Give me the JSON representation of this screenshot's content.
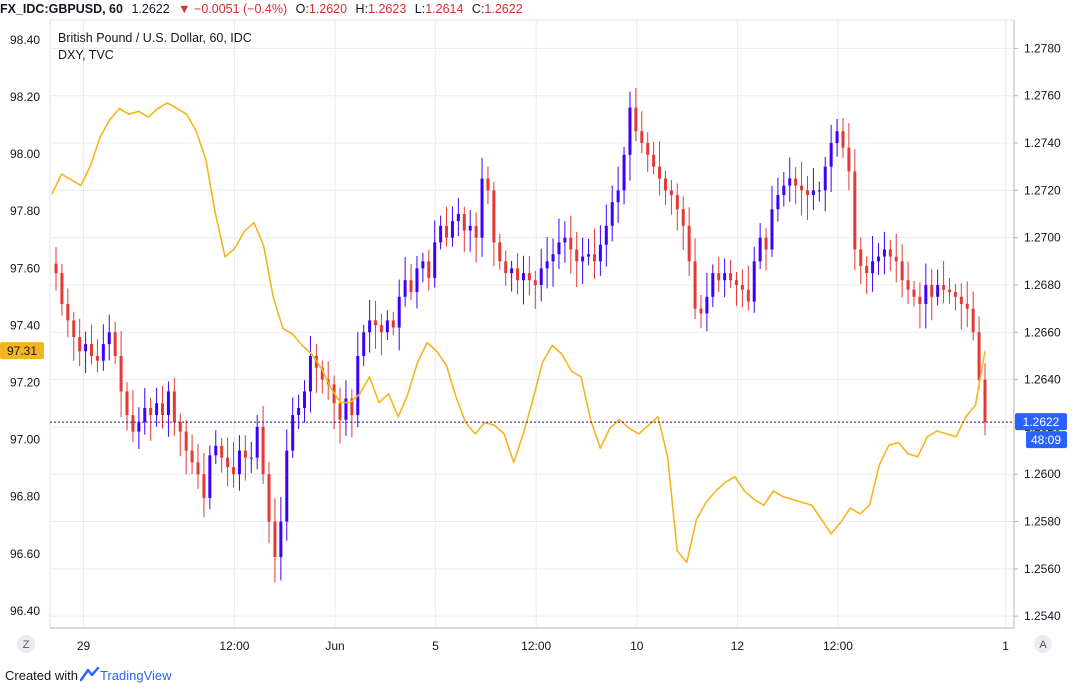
{
  "header": {
    "symbol": "FX_IDC:GBPUSD, 60",
    "last": "1.2622",
    "change": "−0.0051 (−0.4%)",
    "o_label": "O:",
    "o": "1.2620",
    "h_label": "H:",
    "h": "1.2623",
    "l_label": "L:",
    "l": "1.2614",
    "c_label": "C:",
    "c": "1.2622"
  },
  "legend": {
    "main": "British Pound / U.S. Dollar, 60, IDC",
    "overlay": "DXY, TVC"
  },
  "footer": {
    "created_with": "Created with",
    "brand": "TradingView"
  },
  "colors": {
    "up": "#3d00ff",
    "down": "#e53935",
    "dxy": "#f5b51e",
    "grid": "#e9ecf1",
    "price_tag": "#2962ff",
    "dxy_tag": "#f5b51e"
  },
  "chart_data": {
    "type": "line",
    "title": "British Pound / U.S. Dollar, 60, IDC",
    "x_ticks": [
      "29",
      "12:00",
      "Jun",
      "5",
      "12:00",
      "10",
      "12",
      "12:00",
      "1"
    ],
    "y_left_ticks": [
      "98.40",
      "98.20",
      "98.00",
      "97.80",
      "97.60",
      "97.40",
      "97.20",
      "97.00",
      "96.80",
      "96.60",
      "96.40"
    ],
    "y_right_ticks": [
      "1.2780",
      "1.2760",
      "1.2740",
      "1.2720",
      "1.2700",
      "1.2680",
      "1.2660",
      "1.2640",
      "1.2620",
      "1.2600",
      "1.2580",
      "1.2560",
      "1.2540"
    ],
    "ylim_left": [
      96.34,
      98.47
    ],
    "ylim_right": [
      1.2535,
      1.2792
    ],
    "current_price_label": "1.2622",
    "countdown_label": "48:09",
    "dxy_last_label": "97.31",
    "series": [
      {
        "name": "FX_IDC:GBPUSD",
        "kind": "hourly closes",
        "axis": "right",
        "values": [
          1.2685,
          1.2672,
          1.2665,
          1.2658,
          1.2652,
          1.2655,
          1.265,
          1.2648,
          1.2655,
          1.266,
          1.265,
          1.2635,
          1.2625,
          1.2618,
          1.2622,
          1.2628,
          1.2625,
          1.263,
          1.2625,
          1.2635,
          1.2622,
          1.2618,
          1.261,
          1.2605,
          1.26,
          1.259,
          1.2608,
          1.2612,
          1.2607,
          1.2603,
          1.26,
          1.261,
          1.2607,
          1.2607,
          1.262,
          1.26,
          1.258,
          1.2565,
          1.258,
          1.261,
          1.2625,
          1.2628,
          1.2635,
          1.265,
          1.2645,
          1.264,
          1.2638,
          1.263,
          1.2623,
          1.2632,
          1.2625,
          1.265,
          1.266,
          1.2665,
          1.2663,
          1.266,
          1.2665,
          1.2662,
          1.2675,
          1.2682,
          1.2677,
          1.2687,
          1.269,
          1.2683,
          1.2698,
          1.2705,
          1.27,
          1.2707,
          1.271,
          1.2703,
          1.2705,
          1.27,
          1.2725,
          1.272,
          1.2698,
          1.269,
          1.2685,
          1.2687,
          1.2682,
          1.2685,
          1.2682,
          1.268,
          1.2687,
          1.269,
          1.2693,
          1.2698,
          1.27,
          1.2695,
          1.269,
          1.2692,
          1.2693,
          1.269,
          1.2697,
          1.2705,
          1.2715,
          1.272,
          1.2735,
          1.2755,
          1.2745,
          1.274,
          1.2735,
          1.273,
          1.2725,
          1.272,
          1.2718,
          1.2712,
          1.2705,
          1.269,
          1.267,
          1.2668,
          1.2675,
          1.2685,
          1.2682,
          1.2685,
          1.2682,
          1.268,
          1.2678,
          1.2673,
          1.269,
          1.27,
          1.2695,
          1.2712,
          1.2718,
          1.2722,
          1.2725,
          1.2722,
          1.272,
          1.2718,
          1.272,
          1.272,
          1.273,
          1.274,
          1.2745,
          1.2738,
          1.2728,
          1.2695,
          1.2688,
          1.2685,
          1.269,
          1.2692,
          1.2695,
          1.2692,
          1.269,
          1.2682,
          1.2678,
          1.2675,
          1.2672,
          1.268,
          1.2675,
          1.268,
          1.2678,
          1.2677,
          1.2675,
          1.2672,
          1.267,
          1.266,
          1.264,
          1.2622
        ]
      },
      {
        "name": "DXY",
        "kind": "line",
        "axis": "left",
        "values": [
          97.86,
          97.93,
          97.91,
          97.89,
          97.96,
          98.06,
          98.12,
          98.16,
          98.14,
          98.15,
          98.13,
          98.16,
          98.18,
          98.16,
          98.14,
          98.08,
          97.98,
          97.79,
          97.64,
          97.67,
          97.73,
          97.76,
          97.68,
          97.5,
          97.39,
          97.37,
          97.33,
          97.3,
          97.25,
          97.18,
          97.13,
          97.13,
          97.16,
          97.22,
          97.13,
          97.16,
          97.08,
          97.16,
          97.27,
          97.34,
          97.31,
          97.26,
          97.15,
          97.06,
          97.02,
          97.06,
          97.05,
          97.02,
          96.92,
          97.02,
          97.14,
          97.27,
          97.33,
          97.3,
          97.24,
          97.22,
          97.07,
          96.97,
          97.04,
          97.07,
          97.04,
          97.02,
          97.05,
          97.08,
          96.94,
          96.61,
          96.57,
          96.72,
          96.78,
          96.82,
          96.85,
          96.87,
          96.82,
          96.79,
          96.77,
          96.82,
          96.8,
          96.79,
          96.78,
          96.77,
          96.72,
          96.67,
          96.71,
          96.76,
          96.74,
          96.77,
          96.91,
          96.98,
          96.99,
          96.95,
          96.94,
          97.01,
          97.03,
          97.02,
          97.01,
          97.08,
          97.12,
          97.31
        ]
      }
    ]
  }
}
